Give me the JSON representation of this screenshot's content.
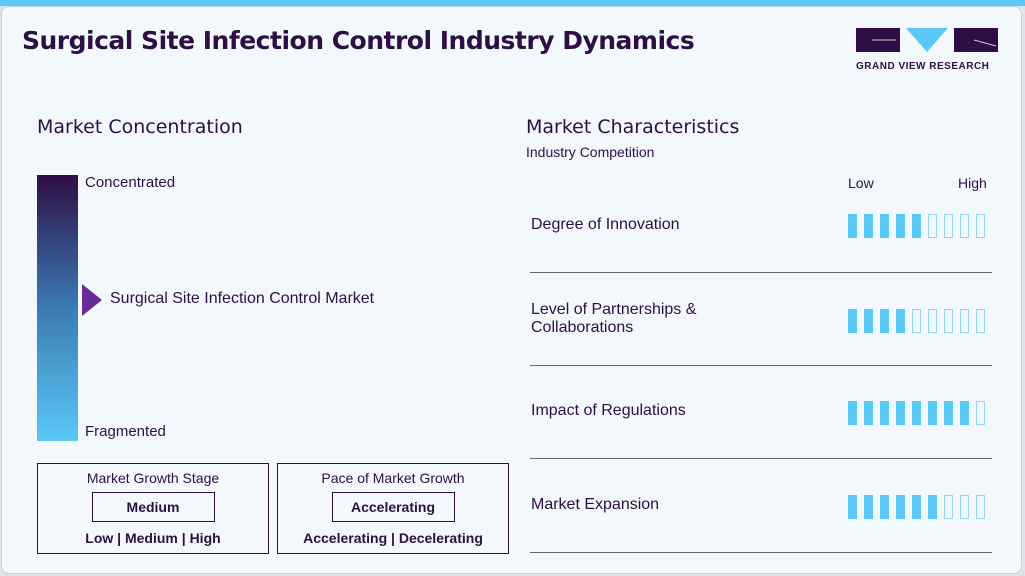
{
  "title": "Surgical Site Infection Control Industry Dynamics",
  "logo": {
    "text": "GRAND VIEW RESEARCH"
  },
  "colors": {
    "brand": "#2e0f45",
    "accent": "#5bc8f5",
    "marker": "#6a2a9a"
  },
  "concentration": {
    "heading": "Market Concentration",
    "top": "Concentrated",
    "bottom": "Fragmented",
    "marker_label": "Surgical Site Infection Control Market"
  },
  "growth_stage": {
    "title": "Market Growth Stage",
    "value": "Medium",
    "options": "Low | Medium | High"
  },
  "pace": {
    "title": "Pace of Market Growth",
    "value": "Accelerating",
    "options": "Accelerating | Decelerating"
  },
  "characteristics": {
    "heading": "Market Characteristics",
    "subheading": "Industry Competition",
    "low": "Low",
    "high": "High",
    "rows": [
      {
        "label": "Degree of Innovation",
        "level": 5,
        "max": 9
      },
      {
        "label": "Level of Partnerships & Collaborations",
        "level": 4,
        "max": 9
      },
      {
        "label": "Impact of Regulations",
        "level": 8,
        "max": 9
      },
      {
        "label": "Market Expansion",
        "level": 6,
        "max": 9
      }
    ]
  }
}
